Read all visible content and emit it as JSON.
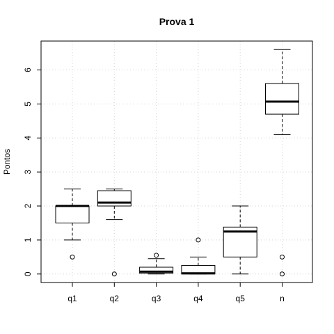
{
  "chart_data": {
    "type": "boxplot",
    "title": "Prova 1",
    "ylabel": "Pontos",
    "xlabel": "",
    "ylim": [
      -0.25,
      6.85
    ],
    "y_ticks": [
      0,
      1,
      2,
      3,
      4,
      5,
      6
    ],
    "grid": true,
    "categories": [
      "q1",
      "q2",
      "q3",
      "q4",
      "q5",
      "n"
    ],
    "boxes": [
      {
        "name": "q1",
        "min": 1.0,
        "q1": 1.5,
        "median": 2.0,
        "q3": 2.0,
        "max": 2.5,
        "outliers": [
          0.5
        ]
      },
      {
        "name": "q2",
        "min": 1.6,
        "q1": 2.0,
        "median": 2.1,
        "q3": 2.45,
        "max": 2.5,
        "outliers": [
          0.0
        ]
      },
      {
        "name": "q3",
        "min": 0.0,
        "q1": 0.02,
        "median": 0.07,
        "q3": 0.2,
        "max": 0.45,
        "outliers": [
          0.55
        ]
      },
      {
        "name": "q4",
        "min": 0.0,
        "q1": 0.0,
        "median": 0.02,
        "q3": 0.25,
        "max": 0.5,
        "outliers": [
          1.0
        ]
      },
      {
        "name": "q5",
        "min": 0.0,
        "q1": 0.5,
        "median": 1.25,
        "q3": 1.38,
        "max": 2.0,
        "outliers": []
      },
      {
        "name": "n",
        "min": 4.1,
        "q1": 4.7,
        "median": 5.07,
        "q3": 5.6,
        "max": 6.6,
        "outliers": [
          0.5,
          0.0
        ]
      }
    ]
  }
}
